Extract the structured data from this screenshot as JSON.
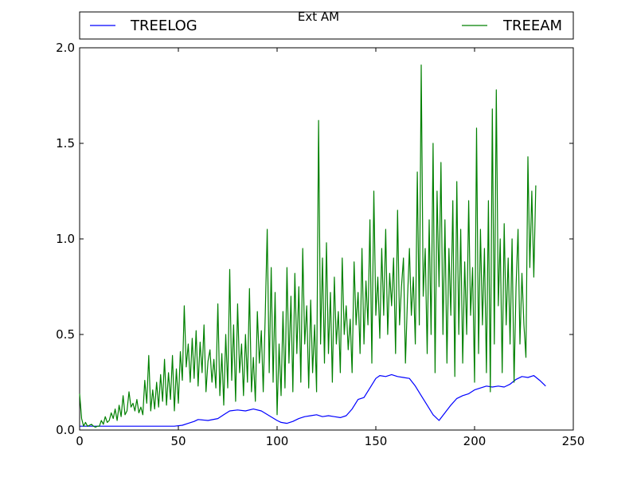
{
  "chart_data": {
    "type": "line",
    "title": "Ext AM",
    "xlabel": "",
    "ylabel": "",
    "xlim": [
      0,
      250
    ],
    "ylim": [
      0,
      2.0
    ],
    "x_ticks": [
      0,
      50,
      100,
      150,
      200,
      250
    ],
    "x_tick_labels": [
      "0",
      "50",
      "100",
      "150",
      "200",
      "250"
    ],
    "y_ticks": [
      0,
      0.5,
      1.0,
      1.5,
      2.0
    ],
    "y_tick_labels": [
      "0.0",
      "0.5",
      "1.0",
      "1.5",
      "2.0"
    ],
    "grid": false,
    "legend_placement": "top, above axes",
    "series": [
      {
        "name": "TREELOG",
        "color": "#0000ff",
        "points": [
          [
            0,
            0.02
          ],
          [
            10,
            0.02
          ],
          [
            20,
            0.02
          ],
          [
            30,
            0.02
          ],
          [
            40,
            0.02
          ],
          [
            48,
            0.02
          ],
          [
            52,
            0.025
          ],
          [
            55,
            0.035
          ],
          [
            58,
            0.045
          ],
          [
            60,
            0.055
          ],
          [
            65,
            0.05
          ],
          [
            70,
            0.06
          ],
          [
            73,
            0.08
          ],
          [
            76,
            0.1
          ],
          [
            80,
            0.105
          ],
          [
            84,
            0.1
          ],
          [
            88,
            0.11
          ],
          [
            92,
            0.1
          ],
          [
            96,
            0.075
          ],
          [
            100,
            0.05
          ],
          [
            102,
            0.04
          ],
          [
            105,
            0.035
          ],
          [
            108,
            0.045
          ],
          [
            111,
            0.06
          ],
          [
            114,
            0.07
          ],
          [
            117,
            0.075
          ],
          [
            120,
            0.08
          ],
          [
            123,
            0.07
          ],
          [
            126,
            0.075
          ],
          [
            129,
            0.07
          ],
          [
            132,
            0.065
          ],
          [
            135,
            0.075
          ],
          [
            138,
            0.11
          ],
          [
            141,
            0.16
          ],
          [
            144,
            0.17
          ],
          [
            147,
            0.22
          ],
          [
            150,
            0.27
          ],
          [
            152,
            0.285
          ],
          [
            155,
            0.28
          ],
          [
            158,
            0.29
          ],
          [
            161,
            0.28
          ],
          [
            164,
            0.275
          ],
          [
            167,
            0.27
          ],
          [
            170,
            0.23
          ],
          [
            173,
            0.18
          ],
          [
            176,
            0.13
          ],
          [
            179,
            0.08
          ],
          [
            182,
            0.05
          ],
          [
            185,
            0.09
          ],
          [
            188,
            0.13
          ],
          [
            191,
            0.165
          ],
          [
            194,
            0.18
          ],
          [
            197,
            0.19
          ],
          [
            200,
            0.21
          ],
          [
            203,
            0.22
          ],
          [
            206,
            0.23
          ],
          [
            209,
            0.225
          ],
          [
            212,
            0.23
          ],
          [
            215,
            0.225
          ],
          [
            218,
            0.24
          ],
          [
            221,
            0.265
          ],
          [
            224,
            0.28
          ],
          [
            227,
            0.275
          ],
          [
            230,
            0.285
          ],
          [
            233,
            0.26
          ],
          [
            236,
            0.23
          ]
        ]
      },
      {
        "name": "TREEAM",
        "color": "#008000",
        "points": [
          [
            0,
            0.19
          ],
          [
            1,
            0.06
          ],
          [
            2,
            0.02
          ],
          [
            3,
            0.04
          ],
          [
            4,
            0.02
          ],
          [
            5,
            0.025
          ],
          [
            6,
            0.03
          ],
          [
            7,
            0.02
          ],
          [
            8,
            0.015
          ],
          [
            9,
            0.02
          ],
          [
            10,
            0.02
          ],
          [
            11,
            0.05
          ],
          [
            12,
            0.03
          ],
          [
            13,
            0.07
          ],
          [
            14,
            0.04
          ],
          [
            15,
            0.05
          ],
          [
            16,
            0.09
          ],
          [
            17,
            0.06
          ],
          [
            18,
            0.11
          ],
          [
            19,
            0.05
          ],
          [
            20,
            0.13
          ],
          [
            21,
            0.07
          ],
          [
            22,
            0.18
          ],
          [
            23,
            0.08
          ],
          [
            24,
            0.1
          ],
          [
            25,
            0.2
          ],
          [
            26,
            0.12
          ],
          [
            27,
            0.14
          ],
          [
            28,
            0.1
          ],
          [
            29,
            0.16
          ],
          [
            30,
            0.09
          ],
          [
            31,
            0.12
          ],
          [
            32,
            0.08
          ],
          [
            33,
            0.26
          ],
          [
            34,
            0.14
          ],
          [
            35,
            0.39
          ],
          [
            36,
            0.1
          ],
          [
            37,
            0.21
          ],
          [
            38,
            0.11
          ],
          [
            39,
            0.25
          ],
          [
            40,
            0.12
          ],
          [
            41,
            0.29
          ],
          [
            42,
            0.15
          ],
          [
            43,
            0.37
          ],
          [
            44,
            0.13
          ],
          [
            45,
            0.3
          ],
          [
            46,
            0.16
          ],
          [
            47,
            0.39
          ],
          [
            48,
            0.1
          ],
          [
            49,
            0.32
          ],
          [
            50,
            0.14
          ],
          [
            51,
            0.41
          ],
          [
            52,
            0.26
          ],
          [
            53,
            0.65
          ],
          [
            54,
            0.33
          ],
          [
            55,
            0.45
          ],
          [
            56,
            0.25
          ],
          [
            57,
            0.48
          ],
          [
            58,
            0.27
          ],
          [
            59,
            0.52
          ],
          [
            60,
            0.23
          ],
          [
            61,
            0.46
          ],
          [
            62,
            0.3
          ],
          [
            63,
            0.55
          ],
          [
            64,
            0.2
          ],
          [
            65,
            0.36
          ],
          [
            66,
            0.42
          ],
          [
            67,
            0.25
          ],
          [
            68,
            0.37
          ],
          [
            69,
            0.22
          ],
          [
            70,
            0.66
          ],
          [
            71,
            0.18
          ],
          [
            72,
            0.4
          ],
          [
            73,
            0.13
          ],
          [
            74,
            0.5
          ],
          [
            75,
            0.22
          ],
          [
            76,
            0.84
          ],
          [
            77,
            0.26
          ],
          [
            78,
            0.55
          ],
          [
            79,
            0.15
          ],
          [
            80,
            0.66
          ],
          [
            81,
            0.3
          ],
          [
            82,
            0.45
          ],
          [
            83,
            0.18
          ],
          [
            84,
            0.5
          ],
          [
            85,
            0.25
          ],
          [
            86,
            0.74
          ],
          [
            87,
            0.2
          ],
          [
            88,
            0.38
          ],
          [
            89,
            0.15
          ],
          [
            90,
            0.62
          ],
          [
            91,
            0.35
          ],
          [
            92,
            0.52
          ],
          [
            93,
            0.2
          ],
          [
            94,
            0.6
          ],
          [
            95,
            1.05
          ],
          [
            96,
            0.3
          ],
          [
            97,
            0.85
          ],
          [
            98,
            0.25
          ],
          [
            99,
            0.72
          ],
          [
            100,
            0.08
          ],
          [
            101,
            0.45
          ],
          [
            102,
            0.18
          ],
          [
            103,
            0.62
          ],
          [
            104,
            0.22
          ],
          [
            105,
            0.85
          ],
          [
            106,
            0.35
          ],
          [
            107,
            0.7
          ],
          [
            108,
            0.2
          ],
          [
            109,
            0.82
          ],
          [
            110,
            0.4
          ],
          [
            111,
            0.75
          ],
          [
            112,
            0.25
          ],
          [
            113,
            0.95
          ],
          [
            114,
            0.45
          ],
          [
            115,
            0.65
          ],
          [
            116,
            0.22
          ],
          [
            117,
            0.68
          ],
          [
            118,
            0.3
          ],
          [
            119,
            0.55
          ],
          [
            120,
            0.2
          ],
          [
            121,
            1.62
          ],
          [
            122,
            0.45
          ],
          [
            123,
            0.9
          ],
          [
            124,
            0.35
          ],
          [
            125,
            0.98
          ],
          [
            126,
            0.4
          ],
          [
            127,
            0.72
          ],
          [
            128,
            0.25
          ],
          [
            129,
            0.8
          ],
          [
            130,
            0.45
          ],
          [
            131,
            0.62
          ],
          [
            132,
            0.3
          ],
          [
            133,
            0.9
          ],
          [
            134,
            0.5
          ],
          [
            135,
            0.65
          ],
          [
            136,
            0.42
          ],
          [
            137,
            0.58
          ],
          [
            138,
            0.3
          ],
          [
            139,
            0.88
          ],
          [
            140,
            0.55
          ],
          [
            141,
            0.72
          ],
          [
            142,
            0.4
          ],
          [
            143,
            0.95
          ],
          [
            144,
            0.45
          ],
          [
            145,
            0.78
          ],
          [
            146,
            0.55
          ],
          [
            147,
            1.1
          ],
          [
            148,
            0.35
          ],
          [
            149,
            1.25
          ],
          [
            150,
            0.6
          ],
          [
            151,
            0.8
          ],
          [
            152,
            0.48
          ],
          [
            153,
            0.95
          ],
          [
            154,
            0.6
          ],
          [
            155,
            1.05
          ],
          [
            156,
            0.5
          ],
          [
            157,
            0.82
          ],
          [
            158,
            0.65
          ],
          [
            159,
            0.9
          ],
          [
            160,
            0.4
          ],
          [
            161,
            1.15
          ],
          [
            162,
            0.55
          ],
          [
            163,
            0.75
          ],
          [
            164,
            0.9
          ],
          [
            165,
            0.35
          ],
          [
            166,
            0.68
          ],
          [
            167,
            0.95
          ],
          [
            168,
            0.6
          ],
          [
            169,
            0.8
          ],
          [
            170,
            0.45
          ],
          [
            171,
            1.35
          ],
          [
            172,
            0.55
          ],
          [
            173,
            1.91
          ],
          [
            174,
            0.7
          ],
          [
            175,
            0.95
          ],
          [
            176,
            0.4
          ],
          [
            177,
            1.1
          ],
          [
            178,
            0.5
          ],
          [
            179,
            1.5
          ],
          [
            180,
            0.3
          ],
          [
            181,
            1.25
          ],
          [
            182,
            0.75
          ],
          [
            183,
            1.4
          ],
          [
            184,
            0.5
          ],
          [
            185,
            1.1
          ],
          [
            186,
            0.35
          ],
          [
            187,
            0.95
          ],
          [
            188,
            0.6
          ],
          [
            189,
            1.2
          ],
          [
            190,
            0.28
          ],
          [
            191,
            1.3
          ],
          [
            192,
            0.5
          ],
          [
            193,
            1.05
          ],
          [
            194,
            0.35
          ],
          [
            195,
            0.88
          ],
          [
            196,
            0.5
          ],
          [
            197,
            1.2
          ],
          [
            198,
            0.6
          ],
          [
            199,
            0.85
          ],
          [
            200,
            0.25
          ],
          [
            201,
            1.58
          ],
          [
            202,
            0.4
          ],
          [
            203,
            1.05
          ],
          [
            204,
            0.55
          ],
          [
            205,
            0.95
          ],
          [
            206,
            0.3
          ],
          [
            207,
            1.2
          ],
          [
            208,
            0.2
          ],
          [
            209,
            1.68
          ],
          [
            210,
            0.45
          ],
          [
            211,
            1.78
          ],
          [
            212,
            0.65
          ],
          [
            213,
            1.0
          ],
          [
            214,
            0.3
          ],
          [
            215,
            1.08
          ],
          [
            216,
            0.55
          ],
          [
            217,
            0.9
          ],
          [
            218,
            0.45
          ],
          [
            219,
            1.0
          ],
          [
            220,
            0.25
          ],
          [
            221,
            0.75
          ],
          [
            222,
            1.05
          ],
          [
            223,
            0.45
          ],
          [
            224,
            0.82
          ],
          [
            225,
            0.55
          ],
          [
            226,
            0.38
          ],
          [
            227,
            1.43
          ],
          [
            228,
            0.85
          ],
          [
            229,
            1.25
          ],
          [
            230,
            0.8
          ],
          [
            231,
            1.28
          ]
        ]
      }
    ]
  }
}
